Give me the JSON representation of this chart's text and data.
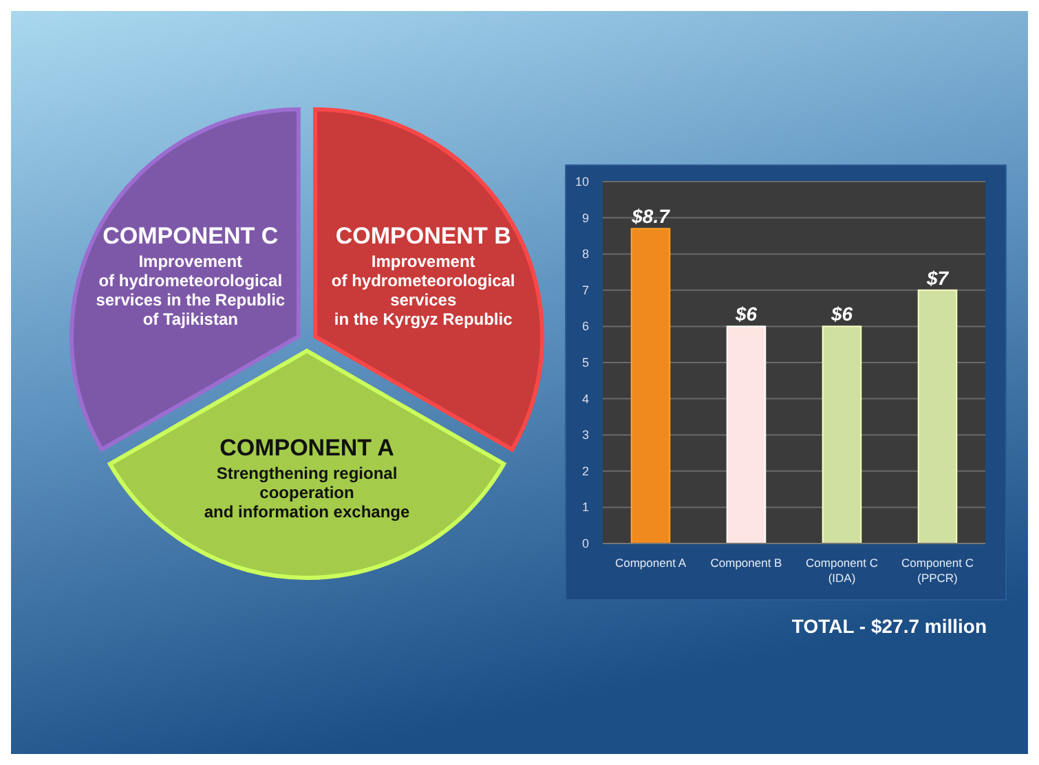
{
  "chart_data": [
    {
      "type": "pie",
      "categories": [
        "COMPONENT B\nImprovement\nof hydrometeorological\nservices\nin the Kyrgyz Republic",
        "COMPONENT A\nStrengthening regional\ncooperation\nand information exchange",
        "COMPONENT C\nImprovement\nof hydrometeorological\nservices in the Republic\nof Tajikistan"
      ],
      "values": [
        33.3,
        33.4,
        33.3
      ],
      "colors": [
        "#c93a3a",
        "#a4cc4a",
        "#7e58a8"
      ]
    },
    {
      "type": "bar",
      "categories": [
        "Component A",
        "Component B",
        "Component C\n(IDA)",
        "Component C\n(PPCR)"
      ],
      "values": [
        8.7,
        6,
        6,
        7
      ],
      "colors": [
        "#f08a1e",
        "#fde5e3",
        "#cfe0a0",
        "#cfe0a0"
      ],
      "value_labels": [
        "$8.7",
        "$6",
        "$6",
        "$7"
      ],
      "ylim": [
        0,
        10
      ],
      "yticks": [
        0,
        1,
        2,
        3,
        4,
        5,
        6,
        7,
        8,
        9,
        10
      ],
      "grid": "y",
      "annotations": [
        "TOTAL - $27.7 million"
      ]
    }
  ]
}
